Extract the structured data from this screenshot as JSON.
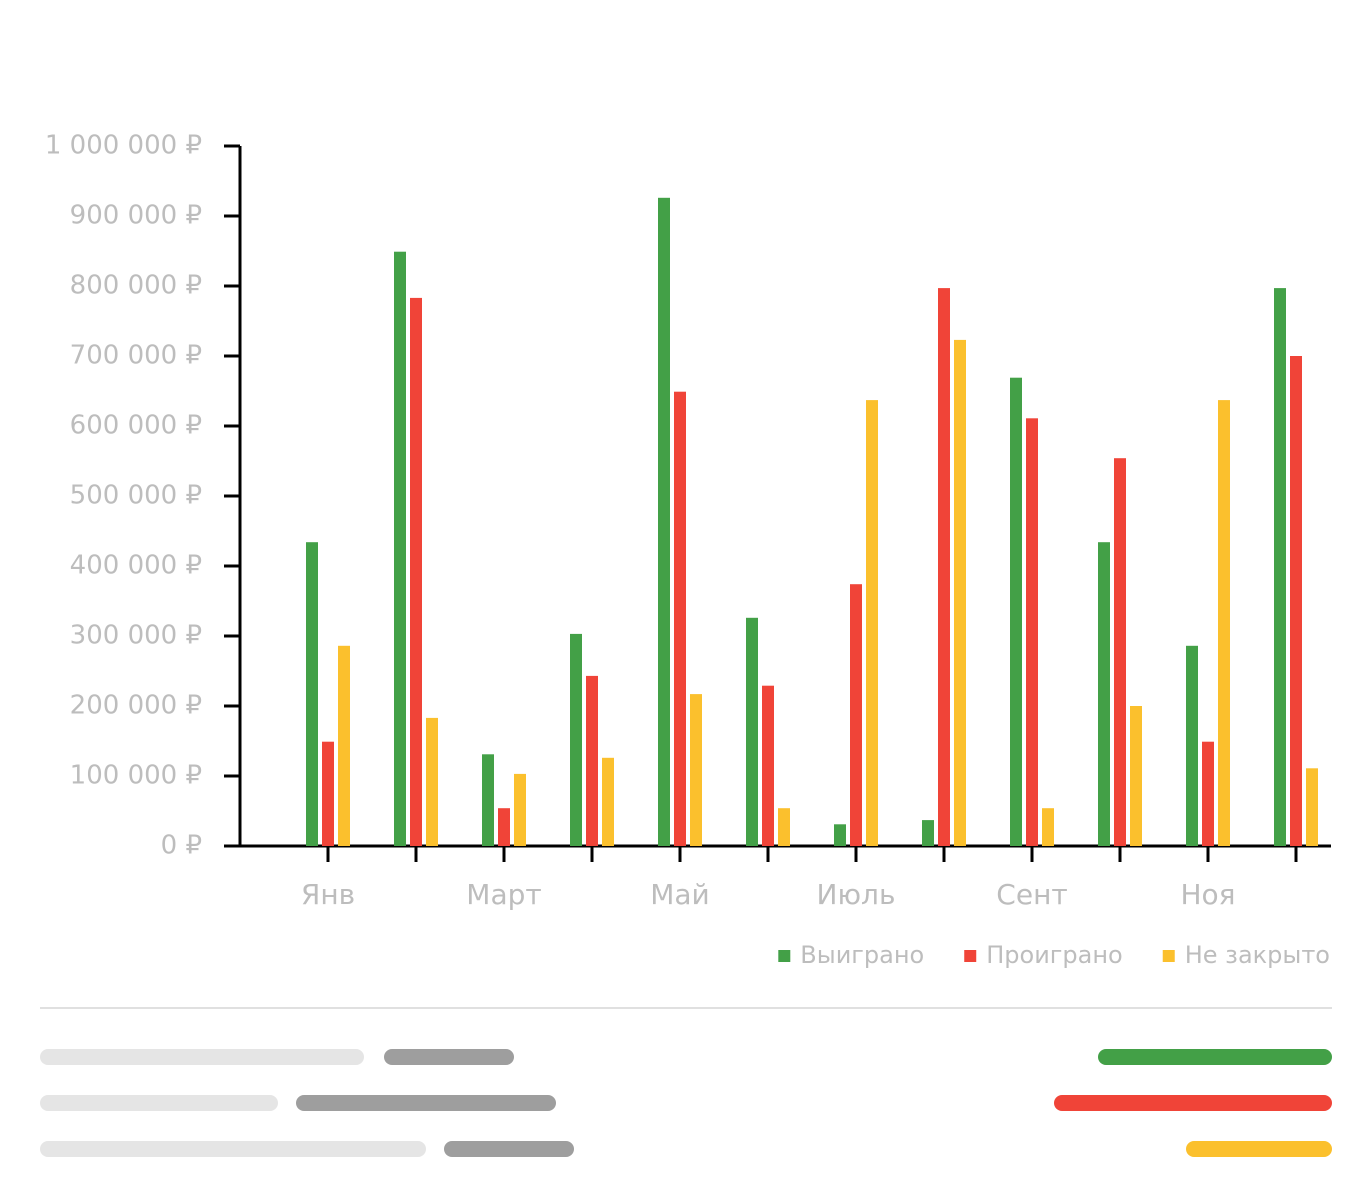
{
  "chart_data": {
    "type": "bar",
    "categories": [
      "Янв",
      null,
      "Март",
      null,
      "Май",
      null,
      "Июль",
      null,
      "Сент",
      null,
      "Ноя",
      null
    ],
    "series": [
      {
        "name": "Выиграно",
        "color": "#43a047",
        "values": [
          434000,
          849000,
          131000,
          303000,
          926000,
          326000,
          31000,
          37000,
          669000,
          434000,
          286000,
          797000
        ]
      },
      {
        "name": "Проиграно",
        "color": "#f04438",
        "values": [
          149000,
          783000,
          54000,
          243000,
          649000,
          229000,
          374000,
          797000,
          611000,
          554000,
          149000,
          700000
        ]
      },
      {
        "name": "Не закрыто",
        "color": "#fbc02d",
        "values": [
          286000,
          183000,
          103000,
          126000,
          217000,
          54000,
          637000,
          723000,
          54000,
          200000,
          637000,
          111000
        ]
      }
    ],
    "ylim": [
      0,
      1000000
    ],
    "yticks": [
      {
        "value": 0,
        "label": "0 ₽"
      },
      {
        "value": 100000,
        "label": "100 000 ₽"
      },
      {
        "value": 200000,
        "label": "200 000 ₽"
      },
      {
        "value": 300000,
        "label": "300 000 ₽"
      },
      {
        "value": 400000,
        "label": "400 000 ₽"
      },
      {
        "value": 500000,
        "label": "500 000 ₽"
      },
      {
        "value": 600000,
        "label": "600 000 ₽"
      },
      {
        "value": 700000,
        "label": "700 000 ₽"
      },
      {
        "value": 800000,
        "label": "800 000 ₽"
      },
      {
        "value": 900000,
        "label": "900 000 ₽"
      },
      {
        "value": 1000000,
        "label": "1 000 000 ₽"
      }
    ],
    "legend": "bottom-right"
  }
}
